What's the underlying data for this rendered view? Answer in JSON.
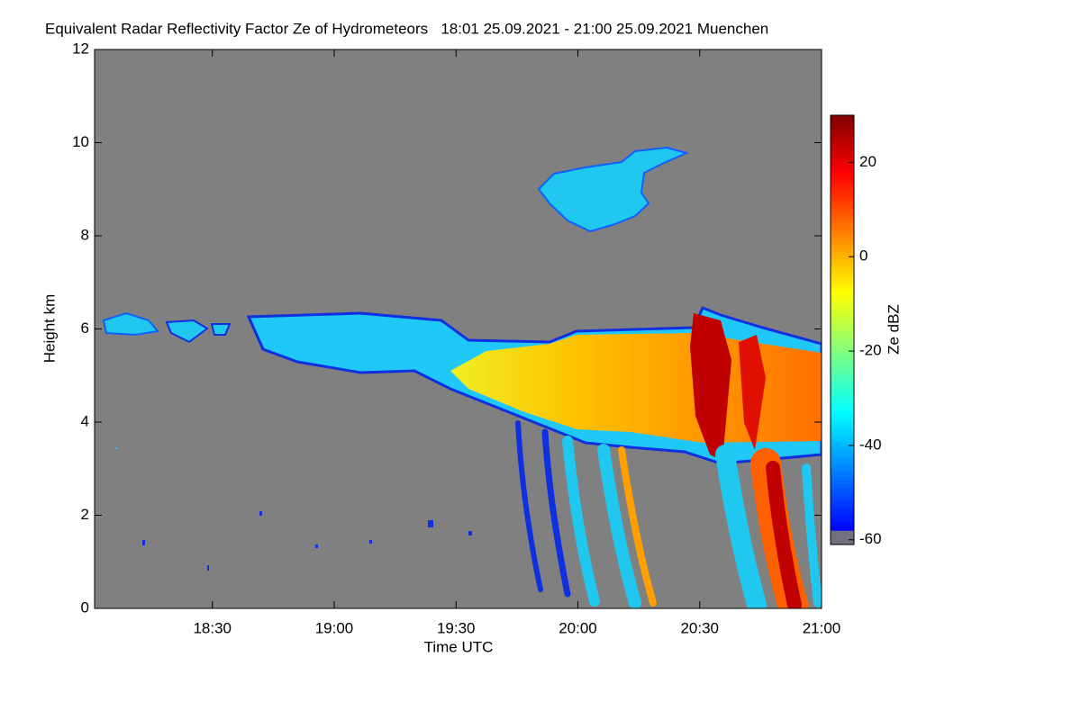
{
  "chart_data": {
    "type": "heatmap",
    "title": "Equivalent Radar Reflectivity Factor Ze of Hydrometeors   18:01 25.09.2021 - 21:00 25.09.2021 Muenchen",
    "x_label": "Time UTC",
    "y_label": "Height km",
    "xlim": [
      1081,
      1260
    ],
    "xticks": [
      {
        "value": 1110,
        "label": "18:30"
      },
      {
        "value": 1140,
        "label": "19:00"
      },
      {
        "value": 1170,
        "label": "19:30"
      },
      {
        "value": 1200,
        "label": "20:00"
      },
      {
        "value": 1230,
        "label": "20:30"
      },
      {
        "value": 1260,
        "label": "21:00"
      }
    ],
    "ylim": [
      0,
      12
    ],
    "yticks": [
      0,
      2,
      4,
      6,
      8,
      10,
      12
    ],
    "background_color": "#808080",
    "colorbar": {
      "label": "Ze dBZ",
      "colormap": "jet",
      "lim": [
        -61,
        30
      ],
      "ticks": [
        -60,
        -40,
        -20,
        0,
        20
      ]
    }
  }
}
